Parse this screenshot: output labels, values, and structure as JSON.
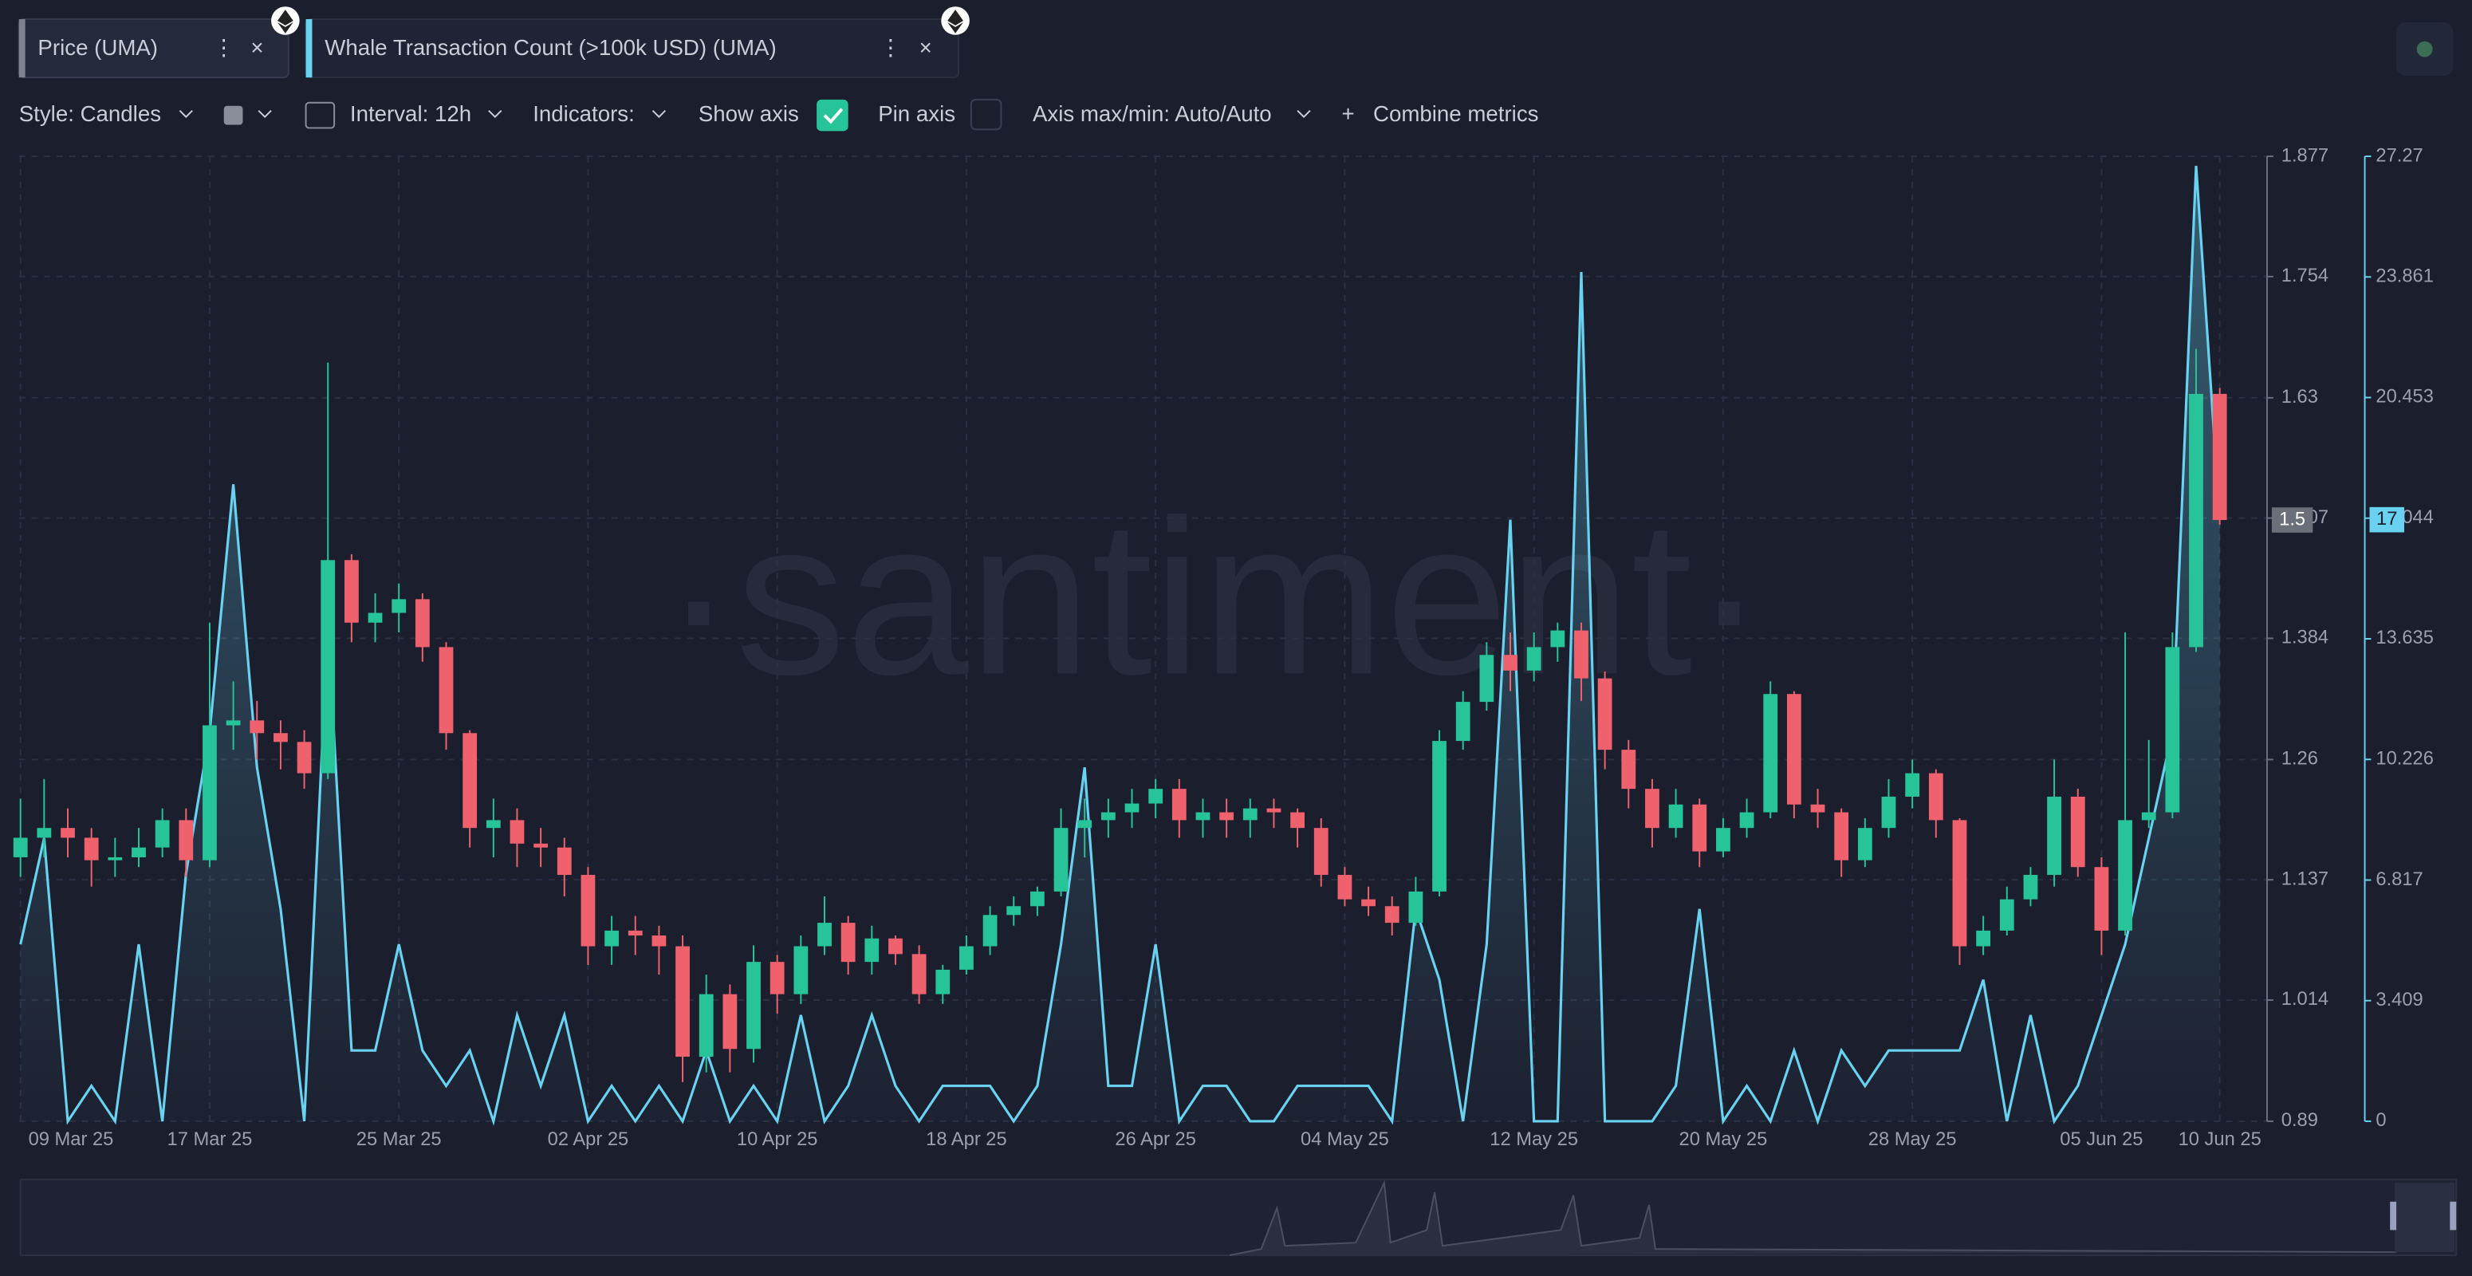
{
  "toolbar": {
    "style": "Style: Candles",
    "interval": "Interval: 12h",
    "indicators": "Indicators:",
    "show_axis": "Show axis",
    "pin_axis": "Pin axis",
    "axis_range": "Axis max/min: Auto/Auto",
    "combine": "Combine metrics"
  },
  "chart_data": {
    "type": "candlestick",
    "watermark": "·santiment·",
    "grid": true,
    "categories": [
      "09 Mar 25",
      null,
      null,
      null,
      null,
      null,
      null,
      null,
      "17 Mar 25",
      null,
      null,
      null,
      null,
      null,
      null,
      null,
      "25 Mar 25",
      null,
      null,
      null,
      null,
      null,
      null,
      null,
      "02 Apr 25",
      null,
      null,
      null,
      null,
      null,
      null,
      null,
      "10 Apr 25",
      null,
      null,
      null,
      null,
      null,
      null,
      null,
      "18 Apr 25",
      null,
      null,
      null,
      null,
      null,
      null,
      null,
      "26 Apr 25",
      null,
      null,
      null,
      null,
      null,
      null,
      null,
      "04 May 25",
      null,
      null,
      null,
      null,
      null,
      null,
      null,
      "12 May 25",
      null,
      null,
      null,
      null,
      null,
      null,
      null,
      "20 May 25",
      null,
      null,
      null,
      null,
      null,
      null,
      null,
      "28 May 25",
      null,
      null,
      null,
      null,
      null,
      null,
      null,
      "05 Jun 25",
      null,
      null,
      null,
      null,
      "10 Jun 25"
    ],
    "ylim": [
      0.89,
      1.877
    ],
    "yticks": [
      0.89,
      1.014,
      1.137,
      1.26,
      1.384,
      1.507,
      1.63,
      1.754,
      1.877
    ],
    "y2lim": [
      0,
      27.27
    ],
    "y2ticks": [
      0,
      3.409,
      6.817,
      10.226,
      13.635,
      17.044,
      20.453,
      23.861,
      27.27
    ],
    "series": [
      {
        "name": "Price (UMA)",
        "type": "candlestick",
        "up_color": "#26c498",
        "down_color": "#f0616e",
        "last_label": "1.5",
        "values": [
          [
            1.16,
            1.22,
            1.14,
            1.18
          ],
          [
            1.18,
            1.24,
            1.16,
            1.19
          ],
          [
            1.19,
            1.21,
            1.16,
            1.18
          ],
          [
            1.18,
            1.19,
            1.13,
            1.157
          ],
          [
            1.157,
            1.18,
            1.14,
            1.16
          ],
          [
            1.16,
            1.19,
            1.15,
            1.17
          ],
          [
            1.17,
            1.21,
            1.16,
            1.198
          ],
          [
            1.198,
            1.21,
            1.14,
            1.157
          ],
          [
            1.157,
            1.4,
            1.15,
            1.295
          ],
          [
            1.295,
            1.34,
            1.27,
            1.3
          ],
          [
            1.3,
            1.32,
            1.26,
            1.287
          ],
          [
            1.287,
            1.3,
            1.25,
            1.278
          ],
          [
            1.278,
            1.29,
            1.23,
            1.246
          ],
          [
            1.246,
            1.666,
            1.24,
            1.464
          ],
          [
            1.464,
            1.47,
            1.38,
            1.4
          ],
          [
            1.4,
            1.43,
            1.38,
            1.41
          ],
          [
            1.41,
            1.44,
            1.39,
            1.424
          ],
          [
            1.424,
            1.43,
            1.36,
            1.375
          ],
          [
            1.375,
            1.38,
            1.27,
            1.287
          ],
          [
            1.287,
            1.29,
            1.17,
            1.19
          ],
          [
            1.19,
            1.22,
            1.16,
            1.198
          ],
          [
            1.198,
            1.21,
            1.15,
            1.174
          ],
          [
            1.174,
            1.19,
            1.15,
            1.17
          ],
          [
            1.17,
            1.18,
            1.12,
            1.142
          ],
          [
            1.142,
            1.15,
            1.05,
            1.069
          ],
          [
            1.069,
            1.1,
            1.05,
            1.085
          ],
          [
            1.085,
            1.1,
            1.06,
            1.08
          ],
          [
            1.08,
            1.09,
            1.04,
            1.069
          ],
          [
            1.069,
            1.08,
            0.93,
            0.956
          ],
          [
            0.956,
            1.04,
            0.94,
            1.02
          ],
          [
            1.02,
            1.03,
            0.94,
            0.964
          ],
          [
            0.964,
            1.07,
            0.95,
            1.053
          ],
          [
            1.053,
            1.06,
            1.0,
            1.02
          ],
          [
            1.02,
            1.08,
            1.01,
            1.069
          ],
          [
            1.069,
            1.12,
            1.06,
            1.093
          ],
          [
            1.093,
            1.1,
            1.04,
            1.053
          ],
          [
            1.053,
            1.09,
            1.04,
            1.077
          ],
          [
            1.077,
            1.08,
            1.05,
            1.061
          ],
          [
            1.061,
            1.07,
            1.01,
            1.02
          ],
          [
            1.02,
            1.05,
            1.01,
            1.045
          ],
          [
            1.045,
            1.08,
            1.04,
            1.069
          ],
          [
            1.069,
            1.11,
            1.06,
            1.101
          ],
          [
            1.101,
            1.12,
            1.09,
            1.11
          ],
          [
            1.11,
            1.13,
            1.1,
            1.125
          ],
          [
            1.125,
            1.21,
            1.12,
            1.19
          ],
          [
            1.19,
            1.22,
            1.16,
            1.198
          ],
          [
            1.198,
            1.22,
            1.18,
            1.206
          ],
          [
            1.206,
            1.23,
            1.19,
            1.215
          ],
          [
            1.215,
            1.24,
            1.2,
            1.23
          ],
          [
            1.23,
            1.24,
            1.18,
            1.198
          ],
          [
            1.198,
            1.22,
            1.18,
            1.206
          ],
          [
            1.206,
            1.22,
            1.18,
            1.198
          ],
          [
            1.198,
            1.22,
            1.18,
            1.21
          ],
          [
            1.21,
            1.22,
            1.19,
            1.206
          ],
          [
            1.206,
            1.21,
            1.17,
            1.19
          ],
          [
            1.19,
            1.2,
            1.13,
            1.142
          ],
          [
            1.142,
            1.15,
            1.11,
            1.117
          ],
          [
            1.117,
            1.13,
            1.1,
            1.11
          ],
          [
            1.11,
            1.12,
            1.08,
            1.093
          ],
          [
            1.093,
            1.14,
            1.09,
            1.125
          ],
          [
            1.125,
            1.29,
            1.12,
            1.279
          ],
          [
            1.279,
            1.33,
            1.27,
            1.319
          ],
          [
            1.319,
            1.38,
            1.31,
            1.367
          ],
          [
            1.367,
            1.39,
            1.33,
            1.351
          ],
          [
            1.351,
            1.39,
            1.34,
            1.375
          ],
          [
            1.375,
            1.4,
            1.36,
            1.392
          ],
          [
            1.392,
            1.4,
            1.32,
            1.343
          ],
          [
            1.343,
            1.35,
            1.25,
            1.27
          ],
          [
            1.27,
            1.28,
            1.21,
            1.23
          ],
          [
            1.23,
            1.24,
            1.17,
            1.19
          ],
          [
            1.19,
            1.23,
            1.18,
            1.214
          ],
          [
            1.214,
            1.22,
            1.15,
            1.166
          ],
          [
            1.166,
            1.2,
            1.16,
            1.19
          ],
          [
            1.19,
            1.22,
            1.18,
            1.206
          ],
          [
            1.206,
            1.34,
            1.2,
            1.327
          ],
          [
            1.327,
            1.33,
            1.2,
            1.214
          ],
          [
            1.214,
            1.23,
            1.19,
            1.206
          ],
          [
            1.206,
            1.21,
            1.14,
            1.157
          ],
          [
            1.157,
            1.2,
            1.15,
            1.19
          ],
          [
            1.19,
            1.24,
            1.18,
            1.222
          ],
          [
            1.222,
            1.26,
            1.21,
            1.246
          ],
          [
            1.246,
            1.25,
            1.18,
            1.198
          ],
          [
            1.198,
            1.2,
            1.05,
            1.069
          ],
          [
            1.069,
            1.1,
            1.06,
            1.085
          ],
          [
            1.085,
            1.13,
            1.08,
            1.117
          ],
          [
            1.117,
            1.15,
            1.11,
            1.142
          ],
          [
            1.142,
            1.26,
            1.13,
            1.222
          ],
          [
            1.222,
            1.23,
            1.14,
            1.15
          ],
          [
            1.15,
            1.16,
            1.06,
            1.085
          ],
          [
            1.085,
            1.39,
            1.08,
            1.198
          ],
          [
            1.198,
            1.28,
            1.19,
            1.206
          ],
          [
            1.206,
            1.39,
            1.2,
            1.375
          ],
          [
            1.375,
            1.68,
            1.37,
            1.634
          ],
          [
            1.634,
            1.64,
            1.5,
            1.505
          ]
        ]
      },
      {
        "name": "Whale Transaction Count (>100k USD) (UMA)",
        "type": "line",
        "axis": "y2",
        "color": "#68d2f0",
        "last_label": "17",
        "values": [
          5,
          8,
          0,
          1,
          0,
          5,
          0,
          7,
          11,
          18,
          10,
          6,
          0,
          14,
          2,
          2,
          5,
          2,
          1,
          2,
          0,
          3,
          1,
          3,
          0,
          1,
          0,
          1,
          0,
          2,
          0,
          1,
          0,
          3,
          0,
          1,
          3,
          1,
          0,
          1,
          1,
          1,
          0,
          1,
          5,
          10,
          1,
          1,
          5,
          0,
          1,
          1,
          0,
          0,
          1,
          1,
          1,
          1,
          0,
          6,
          4,
          0,
          5,
          17,
          0,
          0,
          24,
          0,
          0,
          0,
          1,
          6,
          0,
          1,
          0,
          2,
          0,
          2,
          1,
          2,
          2,
          2,
          2,
          4,
          0,
          3,
          0,
          1,
          3,
          5,
          8,
          11,
          27,
          17
        ]
      }
    ]
  }
}
